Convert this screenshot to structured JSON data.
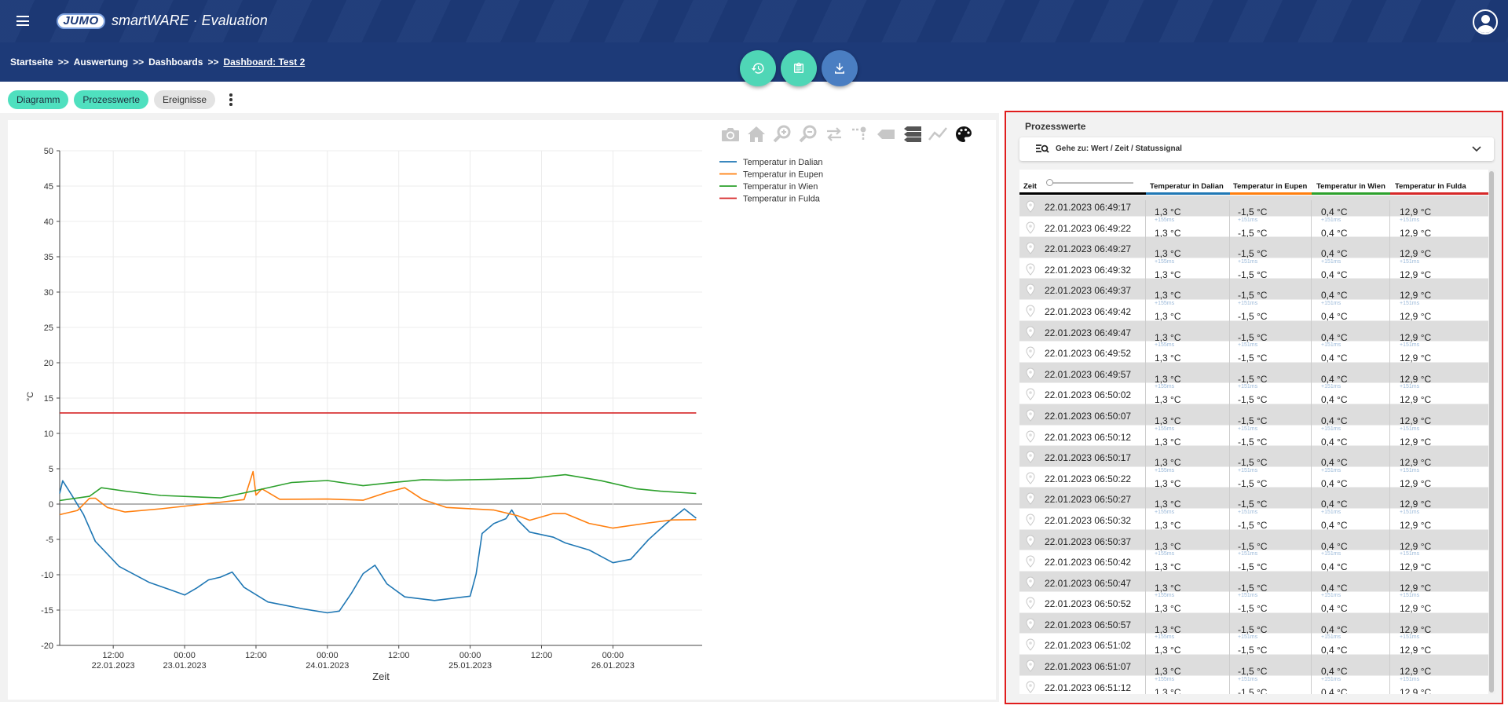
{
  "app": {
    "brand": "JUMO",
    "name": "smartWARE · Evaluation"
  },
  "breadcrumb": {
    "items": [
      "Startseite",
      "Auswertung",
      "Dashboards"
    ],
    "separator": ">>",
    "current": "Dashboard: Test 2"
  },
  "actions": [
    {
      "icon": "history-icon",
      "color": "#4fd6b6"
    },
    {
      "icon": "clipboard-icon",
      "color": "#4fd6b6"
    },
    {
      "icon": "download-icon",
      "color": "#4a7ec2"
    }
  ],
  "tabs": [
    {
      "label": "Diagramm",
      "active": true
    },
    {
      "label": "Prozesswerte",
      "active": true
    },
    {
      "label": "Ereignisse",
      "active": false
    }
  ],
  "modebar": [
    "camera-icon",
    "home-icon",
    "zoom-in-icon",
    "zoom-out-icon",
    "pan-horizontal-icon",
    "spike-lines-icon",
    "hover-closest-icon",
    "hover-compare-icon",
    "line-style-icon",
    "palette-icon"
  ],
  "chart_data": {
    "type": "line",
    "xlabel": "Zeit",
    "ylabel": "°C",
    "ylim": [
      -20,
      50
    ],
    "yticks": [
      50,
      45,
      40,
      35,
      30,
      25,
      20,
      15,
      10,
      5,
      0,
      -5,
      -10,
      -15,
      -20
    ],
    "x_range": [
      "2023-01-22T03:00",
      "2023-01-26T15:00"
    ],
    "xticks": [
      {
        "t": "2023-01-22T12:00",
        "label1": "12:00",
        "label2": "22.01.2023"
      },
      {
        "t": "2023-01-23T00:00",
        "label1": "00:00",
        "label2": "23.01.2023"
      },
      {
        "t": "2023-01-23T12:00",
        "label1": "12:00",
        "label2": ""
      },
      {
        "t": "2023-01-24T00:00",
        "label1": "00:00",
        "label2": "24.01.2023"
      },
      {
        "t": "2023-01-24T12:00",
        "label1": "12:00",
        "label2": ""
      },
      {
        "t": "2023-01-25T00:00",
        "label1": "00:00",
        "label2": "25.01.2023"
      },
      {
        "t": "2023-01-25T12:00",
        "label1": "12:00",
        "label2": ""
      },
      {
        "t": "2023-01-26T00:00",
        "label1": "00:00",
        "label2": "26.01.2023"
      }
    ],
    "legend_position": "top-right",
    "series": [
      {
        "name": "Temperatur in Dalian",
        "color": "#1f77b4",
        "points": [
          [
            "2023-01-22T03:00",
            1.5
          ],
          [
            "2023-01-22T03:30",
            3.0
          ],
          [
            "2023-01-22T05:00",
            1.0
          ],
          [
            "2023-01-22T07:00",
            -1.5
          ],
          [
            "2023-01-22T09:00",
            -5.0
          ],
          [
            "2023-01-22T13:00",
            -8.5
          ],
          [
            "2023-01-22T18:00",
            -11.0
          ],
          [
            "2023-01-22T22:00",
            -12.5
          ],
          [
            "2023-01-23T00:00",
            -13.2
          ],
          [
            "2023-01-23T02:00",
            -12.0
          ],
          [
            "2023-01-23T04:00",
            -10.5
          ],
          [
            "2023-01-23T06:00",
            -10.0
          ],
          [
            "2023-01-23T08:00",
            -9.5
          ],
          [
            "2023-01-23T10:00",
            -12.0
          ],
          [
            "2023-01-23T14:00",
            -14.2
          ],
          [
            "2023-01-23T20:00",
            -15.0
          ],
          [
            "2023-01-24T00:00",
            -15.2
          ],
          [
            "2023-01-24T02:00",
            -14.8
          ],
          [
            "2023-01-24T04:00",
            -12.5
          ],
          [
            "2023-01-24T06:00",
            -10.0
          ],
          [
            "2023-01-24T08:00",
            -9.0
          ],
          [
            "2023-01-24T10:00",
            -11.5
          ],
          [
            "2023-01-24T13:00",
            -13.0
          ],
          [
            "2023-01-24T18:00",
            -13.3
          ],
          [
            "2023-01-25T00:00",
            -12.8
          ],
          [
            "2023-01-25T01:00",
            -10.0
          ],
          [
            "2023-01-25T02:00",
            -4.5
          ],
          [
            "2023-01-25T04:00",
            -3.0
          ],
          [
            "2023-01-25T06:00",
            -2.0
          ],
          [
            "2023-01-25T07:00",
            -0.5
          ],
          [
            "2023-01-25T08:00",
            -2.0
          ],
          [
            "2023-01-25T10:00",
            -4.0
          ],
          [
            "2023-01-25T14:00",
            -5.0
          ],
          [
            "2023-01-25T16:00",
            -5.8
          ],
          [
            "2023-01-25T20:00",
            -6.5
          ],
          [
            "2023-01-26T00:00",
            -8.0
          ],
          [
            "2023-01-26T03:00",
            -7.5
          ],
          [
            "2023-01-26T06:00",
            -5.0
          ],
          [
            "2023-01-26T09:00",
            -3.0
          ],
          [
            "2023-01-26T12:00",
            -1.0
          ],
          [
            "2023-01-26T14:00",
            -2.0
          ]
        ]
      },
      {
        "name": "Temperatur in Eupen",
        "color": "#ff7f0e",
        "points": [
          [
            "2023-01-22T03:00",
            -1.5
          ],
          [
            "2023-01-22T06:00",
            -1.2
          ],
          [
            "2023-01-22T08:00",
            0.5
          ],
          [
            "2023-01-22T09:00",
            0.8
          ],
          [
            "2023-01-22T11:00",
            -0.2
          ],
          [
            "2023-01-22T14:00",
            -0.8
          ],
          [
            "2023-01-22T20:00",
            -0.6
          ],
          [
            "2023-01-23T06:00",
            0.0
          ],
          [
            "2023-01-23T10:00",
            0.3
          ],
          [
            "2023-01-23T11:30",
            4.5
          ],
          [
            "2023-01-23T12:00",
            1.5
          ],
          [
            "2023-01-23T13:00",
            2.5
          ],
          [
            "2023-01-23T16:00",
            0.8
          ],
          [
            "2023-01-24T00:00",
            0.5
          ],
          [
            "2023-01-24T06:00",
            0.2
          ],
          [
            "2023-01-24T10:00",
            1.5
          ],
          [
            "2023-01-24T13:00",
            2.5
          ],
          [
            "2023-01-24T16:00",
            1.0
          ],
          [
            "2023-01-24T20:00",
            -0.3
          ],
          [
            "2023-01-25T04:00",
            -1.0
          ],
          [
            "2023-01-25T08:00",
            -2.0
          ],
          [
            "2023-01-25T10:00",
            -2.5
          ],
          [
            "2023-01-25T14:00",
            -1.2
          ],
          [
            "2023-01-25T16:00",
            -1.0
          ],
          [
            "2023-01-25T20:00",
            -2.5
          ],
          [
            "2023-01-26T00:00",
            -3.5
          ],
          [
            "2023-01-26T06:00",
            -3.0
          ],
          [
            "2023-01-26T10:00",
            -2.5
          ],
          [
            "2023-01-26T14:00",
            -2.2
          ]
        ]
      },
      {
        "name": "Temperatur in Wien",
        "color": "#2ca02c",
        "points": [
          [
            "2023-01-22T03:00",
            0.5
          ],
          [
            "2023-01-22T08:00",
            0.8
          ],
          [
            "2023-01-22T10:00",
            2.0
          ],
          [
            "2023-01-22T14:00",
            1.8
          ],
          [
            "2023-01-22T20:00",
            1.5
          ],
          [
            "2023-01-23T06:00",
            1.2
          ],
          [
            "2023-01-23T12:00",
            2.0
          ],
          [
            "2023-01-23T18:00",
            2.8
          ],
          [
            "2023-01-24T00:00",
            3.0
          ],
          [
            "2023-01-24T06:00",
            2.5
          ],
          [
            "2023-01-24T10:00",
            3.2
          ],
          [
            "2023-01-24T16:00",
            3.8
          ],
          [
            "2023-01-24T20:00",
            3.5
          ],
          [
            "2023-01-25T04:00",
            3.3
          ],
          [
            "2023-01-25T10:00",
            3.3
          ],
          [
            "2023-01-25T16:00",
            4.0
          ],
          [
            "2023-01-25T22:00",
            3.5
          ],
          [
            "2023-01-26T04:00",
            2.5
          ],
          [
            "2023-01-26T08:00",
            2.0
          ],
          [
            "2023-01-26T14:00",
            1.5
          ]
        ]
      },
      {
        "name": "Temperatur in Fulda",
        "color": "#d62728",
        "points": [
          [
            "2023-01-22T03:00",
            12.9
          ],
          [
            "2023-01-26T14:00",
            12.9
          ]
        ]
      }
    ]
  },
  "panel": {
    "title": "Prozesswerte",
    "goto_label": "Gehe zu: Wert / Zeit / Statussignal",
    "columns": [
      {
        "label": "Zeit",
        "color": "#000000"
      },
      {
        "label": "Temperatur in Dalian",
        "color": "#1f77b4"
      },
      {
        "label": "Temperatur in Eupen",
        "color": "#ff7f0e"
      },
      {
        "label": "Temperatur in Wien",
        "color": "#2ca02c"
      },
      {
        "label": "Temperatur in Fulda",
        "color": "#d62728"
      }
    ],
    "rows": [
      {
        "time": "22.01.2023 06:49:17",
        "ms": [
          "",
          "",
          "",
          ""
        ],
        "v": [
          "1,3 °C",
          "-1,5 °C",
          "0,4 °C",
          "12,9 °C"
        ]
      },
      {
        "time": "22.01.2023 06:49:22",
        "ms": [
          "+155ms",
          "+151ms",
          "+151ms",
          "+151ms"
        ],
        "v": [
          "1,3 °C",
          "-1,5 °C",
          "0,4 °C",
          "12,9 °C"
        ]
      },
      {
        "time": "22.01.2023 06:49:27",
        "ms": [
          "",
          "",
          "",
          ""
        ],
        "v": [
          "1,3 °C",
          "-1,5 °C",
          "0,4 °C",
          "12,9 °C"
        ]
      },
      {
        "time": "22.01.2023 06:49:32",
        "ms": [
          "+155ms",
          "+151ms",
          "+151ms",
          "+151ms"
        ],
        "v": [
          "1,3 °C",
          "-1,5 °C",
          "0,4 °C",
          "12,9 °C"
        ]
      },
      {
        "time": "22.01.2023 06:49:37",
        "ms": [
          "",
          "",
          "",
          ""
        ],
        "v": [
          "1,3 °C",
          "-1,5 °C",
          "0,4 °C",
          "12,9 °C"
        ]
      },
      {
        "time": "22.01.2023 06:49:42",
        "ms": [
          "+155ms",
          "+151ms",
          "+151ms",
          "+151ms"
        ],
        "v": [
          "1,3 °C",
          "-1,5 °C",
          "0,4 °C",
          "12,9 °C"
        ]
      },
      {
        "time": "22.01.2023 06:49:47",
        "ms": [
          "",
          "",
          "",
          ""
        ],
        "v": [
          "1,3 °C",
          "-1,5 °C",
          "0,4 °C",
          "12,9 °C"
        ]
      },
      {
        "time": "22.01.2023 06:49:52",
        "ms": [
          "+155ms",
          "+151ms",
          "+151ms",
          "+151ms"
        ],
        "v": [
          "1,3 °C",
          "-1,5 °C",
          "0,4 °C",
          "12,9 °C"
        ]
      },
      {
        "time": "22.01.2023 06:49:57",
        "ms": [
          "",
          "",
          "",
          ""
        ],
        "v": [
          "1,3 °C",
          "-1,5 °C",
          "0,4 °C",
          "12,9 °C"
        ]
      },
      {
        "time": "22.01.2023 06:50:02",
        "ms": [
          "+155ms",
          "+151ms",
          "+151ms",
          "+151ms"
        ],
        "v": [
          "1,3 °C",
          "-1,5 °C",
          "0,4 °C",
          "12,9 °C"
        ]
      },
      {
        "time": "22.01.2023 06:50:07",
        "ms": [
          "",
          "",
          "",
          ""
        ],
        "v": [
          "1,3 °C",
          "-1,5 °C",
          "0,4 °C",
          "12,9 °C"
        ]
      },
      {
        "time": "22.01.2023 06:50:12",
        "ms": [
          "+155ms",
          "+151ms",
          "+151ms",
          "+151ms"
        ],
        "v": [
          "1,3 °C",
          "-1,5 °C",
          "0,4 °C",
          "12,9 °C"
        ]
      },
      {
        "time": "22.01.2023 06:50:17",
        "ms": [
          "",
          "",
          "",
          ""
        ],
        "v": [
          "1,3 °C",
          "-1,5 °C",
          "0,4 °C",
          "12,9 °C"
        ]
      },
      {
        "time": "22.01.2023 06:50:22",
        "ms": [
          "+155ms",
          "+151ms",
          "+151ms",
          "+151ms"
        ],
        "v": [
          "1,3 °C",
          "-1,5 °C",
          "0,4 °C",
          "12,9 °C"
        ]
      },
      {
        "time": "22.01.2023 06:50:27",
        "ms": [
          "",
          "",
          "",
          ""
        ],
        "v": [
          "1,3 °C",
          "-1,5 °C",
          "0,4 °C",
          "12,9 °C"
        ]
      },
      {
        "time": "22.01.2023 06:50:32",
        "ms": [
          "+155ms",
          "+151ms",
          "+151ms",
          "+151ms"
        ],
        "v": [
          "1,3 °C",
          "-1,5 °C",
          "0,4 °C",
          "12,9 °C"
        ]
      },
      {
        "time": "22.01.2023 06:50:37",
        "ms": [
          "",
          "",
          "",
          ""
        ],
        "v": [
          "1,3 °C",
          "-1,5 °C",
          "0,4 °C",
          "12,9 °C"
        ]
      },
      {
        "time": "22.01.2023 06:50:42",
        "ms": [
          "+155ms",
          "+151ms",
          "+151ms",
          "+151ms"
        ],
        "v": [
          "1,3 °C",
          "-1,5 °C",
          "0,4 °C",
          "12,9 °C"
        ]
      },
      {
        "time": "22.01.2023 06:50:47",
        "ms": [
          "",
          "",
          "",
          ""
        ],
        "v": [
          "1,3 °C",
          "-1,5 °C",
          "0,4 °C",
          "12,9 °C"
        ]
      },
      {
        "time": "22.01.2023 06:50:52",
        "ms": [
          "+155ms",
          "+151ms",
          "+151ms",
          "+151ms"
        ],
        "v": [
          "1,3 °C",
          "-1,5 °C",
          "0,4 °C",
          "12,9 °C"
        ]
      },
      {
        "time": "22.01.2023 06:50:57",
        "ms": [
          "",
          "",
          "",
          ""
        ],
        "v": [
          "1,3 °C",
          "-1,5 °C",
          "0,4 °C",
          "12,9 °C"
        ]
      },
      {
        "time": "22.01.2023 06:51:02",
        "ms": [
          "+155ms",
          "+151ms",
          "+151ms",
          "+151ms"
        ],
        "v": [
          "1,3 °C",
          "-1,5 °C",
          "0,4 °C",
          "12,9 °C"
        ]
      },
      {
        "time": "22.01.2023 06:51:07",
        "ms": [
          "",
          "",
          "",
          ""
        ],
        "v": [
          "1,3 °C",
          "-1,5 °C",
          "0,4 °C",
          "12,9 °C"
        ]
      },
      {
        "time": "22.01.2023 06:51:12",
        "ms": [
          "+155ms",
          "+151ms",
          "+151ms",
          "+151ms"
        ],
        "v": [
          "1,3 °C",
          "-1,5 °C",
          "0,4 °C",
          "12,9 °C"
        ]
      }
    ]
  }
}
